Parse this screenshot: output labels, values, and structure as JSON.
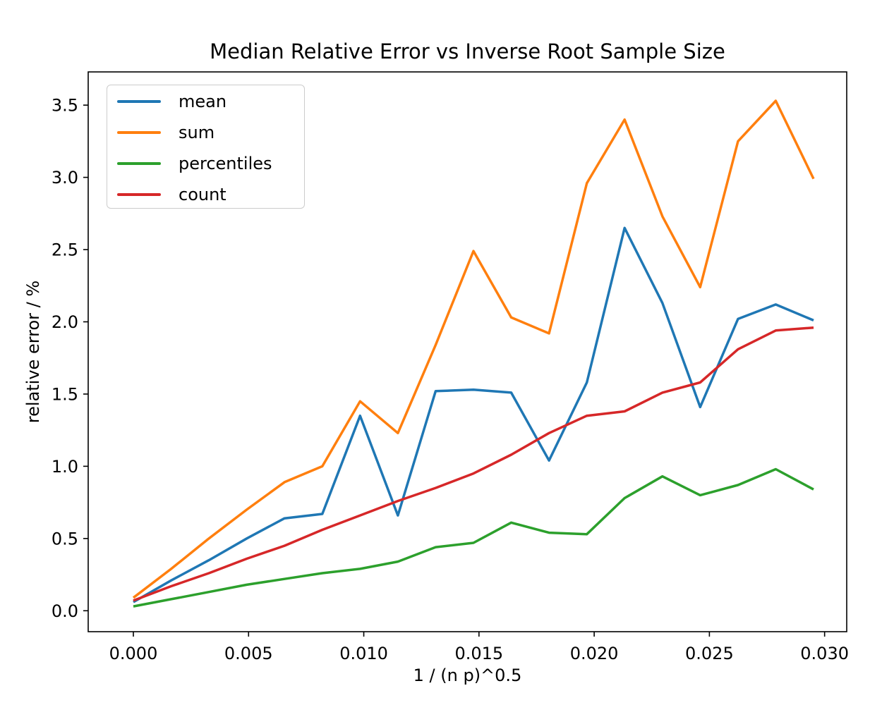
{
  "chart_data": {
    "type": "line",
    "title": "Median Relative Error vs Inverse Root Sample Size",
    "xlabel": "1 / (n p)^0.5",
    "ylabel": "relative error / %",
    "x": [
      0.0,
      0.00164,
      0.00328,
      0.00492,
      0.00656,
      0.0082,
      0.00984,
      0.01148,
      0.01312,
      0.01476,
      0.0164,
      0.01804,
      0.01968,
      0.02132,
      0.02296,
      0.0246,
      0.02624,
      0.02788,
      0.02952
    ],
    "series": [
      {
        "name": "mean",
        "color": "#1f77b4",
        "values": [
          0.06,
          0.21,
          0.35,
          0.5,
          0.64,
          0.67,
          1.35,
          0.66,
          1.52,
          1.53,
          1.51,
          1.04,
          1.58,
          2.65,
          2.13,
          1.41,
          2.02,
          2.12,
          2.01
        ]
      },
      {
        "name": "sum",
        "color": "#ff7f0e",
        "values": [
          0.09,
          0.29,
          0.5,
          0.7,
          0.89,
          1.0,
          1.45,
          1.23,
          1.84,
          2.49,
          2.03,
          1.92,
          2.96,
          3.4,
          2.73,
          2.24,
          3.25,
          3.53,
          2.99
        ]
      },
      {
        "name": "percentiles",
        "color": "#2ca02c",
        "values": [
          0.03,
          0.08,
          0.13,
          0.18,
          0.22,
          0.26,
          0.29,
          0.34,
          0.44,
          0.47,
          0.61,
          0.54,
          0.53,
          0.78,
          0.93,
          0.8,
          0.87,
          0.98,
          0.84
        ]
      },
      {
        "name": "count",
        "color": "#d62728",
        "values": [
          0.07,
          0.17,
          0.26,
          0.36,
          0.45,
          0.56,
          0.66,
          0.76,
          0.85,
          0.95,
          1.08,
          1.23,
          1.35,
          1.38,
          1.51,
          1.58,
          1.81,
          1.94,
          1.96
        ]
      }
    ],
    "x_ticks": {
      "values": [
        0.0,
        0.005,
        0.01,
        0.015,
        0.02,
        0.025,
        0.03
      ],
      "labels": [
        "0.000",
        "0.005",
        "0.010",
        "0.015",
        "0.020",
        "0.025",
        "0.030"
      ]
    },
    "y_ticks": {
      "values": [
        0.0,
        0.5,
        1.0,
        1.5,
        2.0,
        2.5,
        3.0,
        3.5
      ],
      "labels": [
        "0.0",
        "0.5",
        "1.0",
        "1.5",
        "2.0",
        "2.5",
        "3.0",
        "3.5"
      ]
    },
    "xlim": [
      -0.00196,
      0.03096
    ],
    "ylim": [
      -0.145,
      3.73
    ],
    "grid": false,
    "legend_position": "upper left",
    "legend": [
      "mean",
      "sum",
      "percentiles",
      "count"
    ]
  }
}
